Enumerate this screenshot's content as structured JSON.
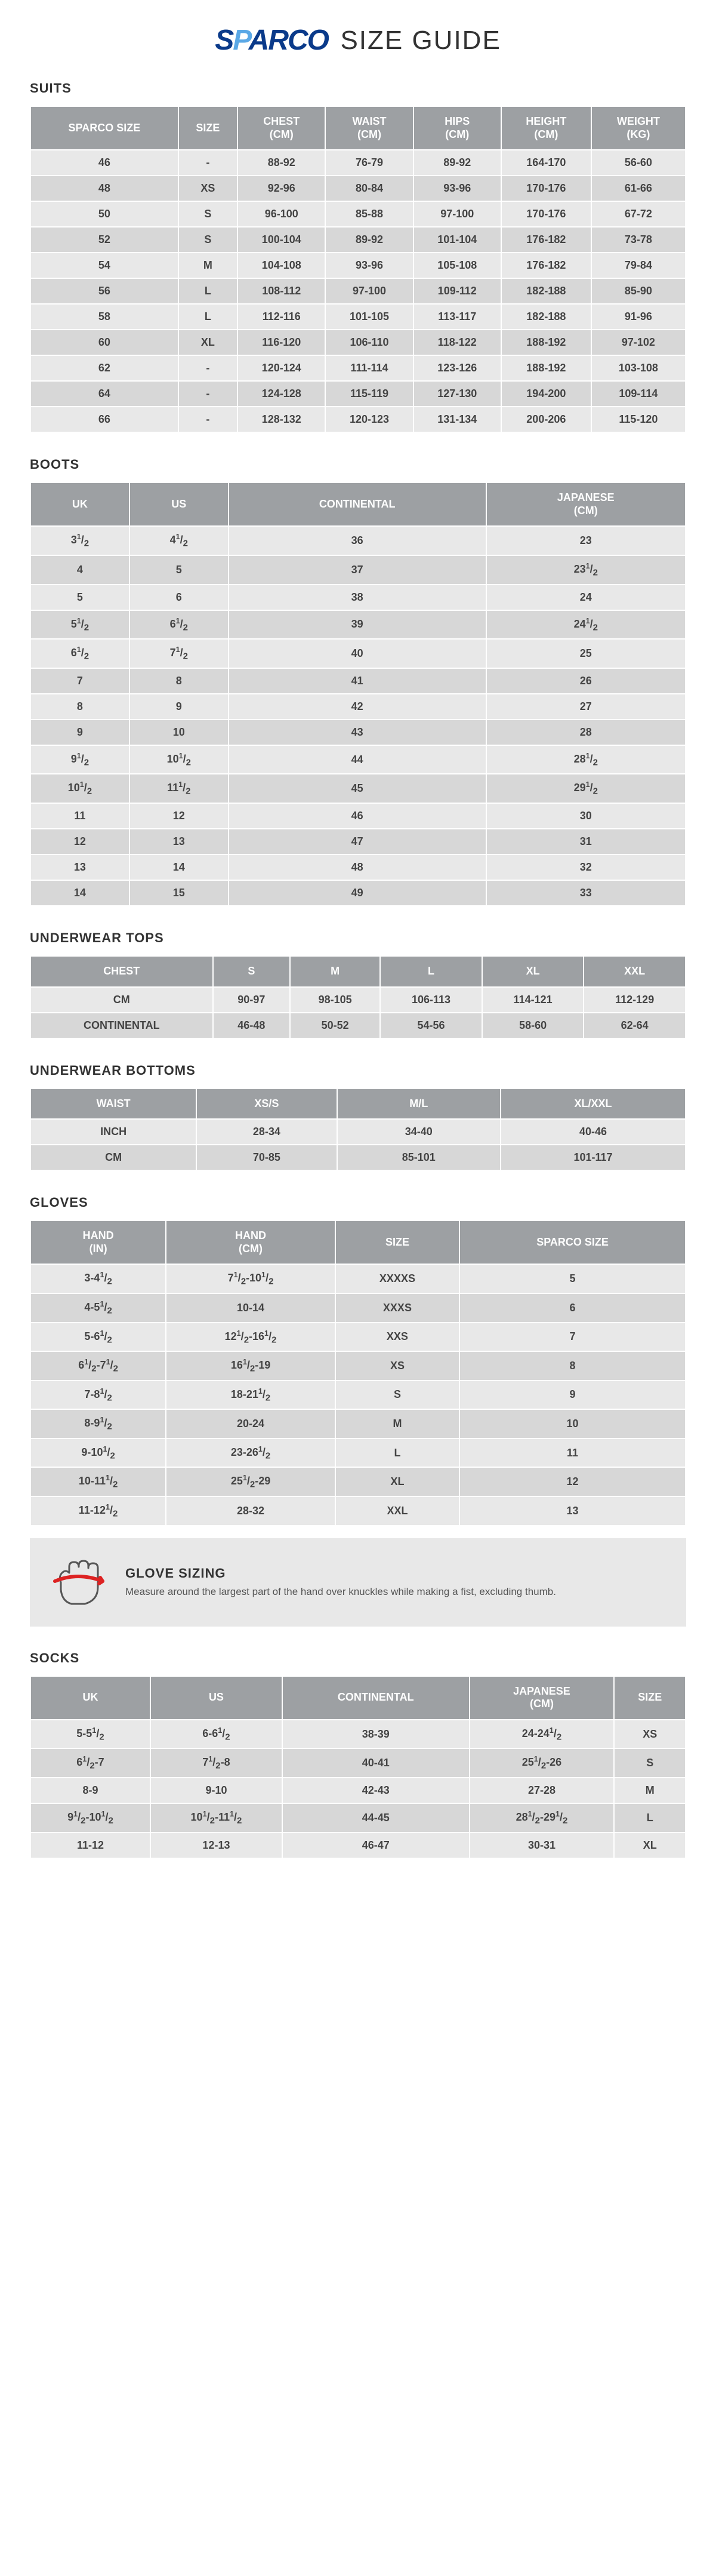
{
  "header": {
    "brand_part1": "S",
    "brand_part2": "P",
    "brand_part3": "ARCO",
    "title": "SIZE GUIDE"
  },
  "suits": {
    "title": "SUITS",
    "headers": [
      "SPARCO SIZE",
      "SIZE",
      "CHEST (CM)",
      "WAIST (CM)",
      "HIPS (CM)",
      "HEIGHT (CM)",
      "WEIGHT (KG)"
    ],
    "rows": [
      [
        "46",
        "-",
        "88-92",
        "76-79",
        "89-92",
        "164-170",
        "56-60"
      ],
      [
        "48",
        "XS",
        "92-96",
        "80-84",
        "93-96",
        "170-176",
        "61-66"
      ],
      [
        "50",
        "S",
        "96-100",
        "85-88",
        "97-100",
        "170-176",
        "67-72"
      ],
      [
        "52",
        "S",
        "100-104",
        "89-92",
        "101-104",
        "176-182",
        "73-78"
      ],
      [
        "54",
        "M",
        "104-108",
        "93-96",
        "105-108",
        "176-182",
        "79-84"
      ],
      [
        "56",
        "L",
        "108-112",
        "97-100",
        "109-112",
        "182-188",
        "85-90"
      ],
      [
        "58",
        "L",
        "112-116",
        "101-105",
        "113-117",
        "182-188",
        "91-96"
      ],
      [
        "60",
        "XL",
        "116-120",
        "106-110",
        "118-122",
        "188-192",
        "97-102"
      ],
      [
        "62",
        "-",
        "120-124",
        "111-114",
        "123-126",
        "188-192",
        "103-108"
      ],
      [
        "64",
        "-",
        "124-128",
        "115-119",
        "127-130",
        "194-200",
        "109-114"
      ],
      [
        "66",
        "-",
        "128-132",
        "120-123",
        "131-134",
        "200-206",
        "115-120"
      ]
    ]
  },
  "boots": {
    "title": "BOOTS",
    "headers": [
      "UK",
      "US",
      "CONTINENTAL",
      "JAPANESE (CM)"
    ],
    "rows": [
      [
        "3½",
        "4½",
        "36",
        "23"
      ],
      [
        "4",
        "5",
        "37",
        "23½"
      ],
      [
        "5",
        "6",
        "38",
        "24"
      ],
      [
        "5½",
        "6½",
        "39",
        "24½"
      ],
      [
        "6½",
        "7½",
        "40",
        "25"
      ],
      [
        "7",
        "8",
        "41",
        "26"
      ],
      [
        "8",
        "9",
        "42",
        "27"
      ],
      [
        "9",
        "10",
        "43",
        "28"
      ],
      [
        "9½",
        "10½",
        "44",
        "28½"
      ],
      [
        "10½",
        "11½",
        "45",
        "29½"
      ],
      [
        "11",
        "12",
        "46",
        "30"
      ],
      [
        "12",
        "13",
        "47",
        "31"
      ],
      [
        "13",
        "14",
        "48",
        "32"
      ],
      [
        "14",
        "15",
        "49",
        "33"
      ]
    ]
  },
  "underwear_tops": {
    "title": "UNDERWEAR TOPS",
    "row_label_header": "CHEST",
    "headers": [
      "S",
      "M",
      "L",
      "XL",
      "XXL"
    ],
    "rows": [
      [
        "CM",
        "90-97",
        "98-105",
        "106-113",
        "114-121",
        "112-129"
      ],
      [
        "CONTINENTAL",
        "46-48",
        "50-52",
        "54-56",
        "58-60",
        "62-64"
      ]
    ]
  },
  "underwear_bottoms": {
    "title": "UNDERWEAR BOTTOMS",
    "row_label_header": "WAIST",
    "headers": [
      "XS/S",
      "M/L",
      "XL/XXL"
    ],
    "rows": [
      [
        "INCH",
        "28-34",
        "34-40",
        "40-46"
      ],
      [
        "CM",
        "70-85",
        "85-101",
        "101-117"
      ]
    ]
  },
  "gloves": {
    "title": "GLOVES",
    "headers": [
      "HAND (IN)",
      "HAND (CM)",
      "SIZE",
      "SPARCO SIZE"
    ],
    "rows": [
      [
        "3-4½",
        "7½-10½",
        "XXXXS",
        "5"
      ],
      [
        "4-5½",
        "10-14",
        "XXXS",
        "6"
      ],
      [
        "5-6½",
        "12½-16½",
        "XXS",
        "7"
      ],
      [
        "6½-7½",
        "16½-19",
        "XS",
        "8"
      ],
      [
        "7-8½",
        "18-21½",
        "S",
        "9"
      ],
      [
        "8-9½",
        "20-24",
        "M",
        "10"
      ],
      [
        "9-10½",
        "23-26½",
        "L",
        "11"
      ],
      [
        "10-11½",
        "25½-29",
        "XL",
        "12"
      ],
      [
        "11-12½",
        "28-32",
        "XXL",
        "13"
      ]
    ],
    "callout": {
      "title": "GLOVE SIZING",
      "desc": "Measure around the largest part of the hand over knuckles while making a fist, excluding thumb."
    }
  },
  "socks": {
    "title": "SOCKS",
    "headers": [
      "UK",
      "US",
      "CONTINENTAL",
      "JAPANESE (CM)",
      "SIZE"
    ],
    "rows": [
      [
        "5-5½",
        "6-6½",
        "38-39",
        "24-24½",
        "XS"
      ],
      [
        "6½-7",
        "7½-8",
        "40-41",
        "25½-26",
        "S"
      ],
      [
        "8-9",
        "9-10",
        "42-43",
        "27-28",
        "M"
      ],
      [
        "9½-10½",
        "10½-11½",
        "44-45",
        "28½-29½",
        "L"
      ],
      [
        "11-12",
        "12-13",
        "46-47",
        "30-31",
        "XL"
      ]
    ]
  },
  "colors": {
    "header_bg": "#9da0a3",
    "header_fg": "#ffffff",
    "row_even": "#e8e8e8",
    "row_odd": "#d7d7d7",
    "logo_dark": "#0a3a8a",
    "logo_light": "#5aa8e6"
  }
}
